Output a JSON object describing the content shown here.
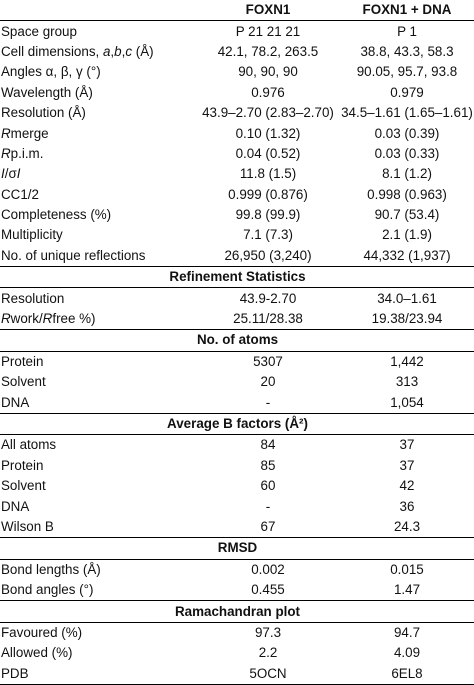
{
  "table": {
    "columns": [
      "",
      "FOXN1",
      "FOXN1 + DNA"
    ],
    "rows": [
      {
        "type": "row",
        "label": "Space group",
        "a": "P 21 21 21",
        "b": "P 1"
      },
      {
        "type": "row",
        "label": "Cell dimensions, a,b,c (Å)",
        "a": "42.1, 78.2, 263.5",
        "b": "38.8, 43.3, 58.3"
      },
      {
        "type": "row",
        "label": "Angles α, β, γ (°)",
        "a": "90, 90, 90",
        "b": "90.05, 95.7, 93.8"
      },
      {
        "type": "row",
        "label": "Wavelength (Å)",
        "a": "0.976",
        "b": "0.979"
      },
      {
        "type": "row",
        "label": "Resolution (Å)",
        "a": "43.9–2.70 (2.83–2.70)",
        "b": "34.5–1.61 (1.65–1.61)"
      },
      {
        "type": "row",
        "label": "Rmerge",
        "a": "0.10 (1.32)",
        "b": "0.03 (0.39)"
      },
      {
        "type": "row",
        "label": "Rp.i.m.",
        "a": "0.04 (0.52)",
        "b": "0.03 (0.33)"
      },
      {
        "type": "row",
        "label": "I/σI",
        "a": "11.8 (1.5)",
        "b": "8.1 (1.2)"
      },
      {
        "type": "row",
        "label": "CC1/2",
        "a": "0.999 (0.876)",
        "b": "0.998 (0.963)"
      },
      {
        "type": "row",
        "label": "Completeness (%)",
        "a": "99.8 (99.9)",
        "b": "90.7 (53.4)"
      },
      {
        "type": "row",
        "label": "Multiplicity",
        "a": "7.1 (7.3)",
        "b": "2.1 (1.9)"
      },
      {
        "type": "row",
        "label": "No. of unique reflections",
        "a": "26,950 (3,240)",
        "b": "44,332 (1,937)"
      },
      {
        "type": "section",
        "label": "Refinement Statistics"
      },
      {
        "type": "row",
        "label": "Resolution",
        "a": "43.9-2.70",
        "b": "34.0–1.61"
      },
      {
        "type": "row",
        "label": "Rwork/Rfree %)",
        "a": "25.11/28.38",
        "b": "19.38/23.94"
      },
      {
        "type": "section",
        "label": "No. of atoms"
      },
      {
        "type": "row",
        "label": "Protein",
        "a": "5307",
        "b": "1,442"
      },
      {
        "type": "row",
        "label": "Solvent",
        "a": "20",
        "b": "313"
      },
      {
        "type": "row",
        "label": "DNA",
        "a": "-",
        "b": "1,054"
      },
      {
        "type": "section",
        "label": "Average B factors (Å²)"
      },
      {
        "type": "row",
        "label": "All atoms",
        "a": "84",
        "b": "37"
      },
      {
        "type": "row",
        "label": "Protein",
        "a": "85",
        "b": "37"
      },
      {
        "type": "row",
        "label": "Solvent",
        "a": "60",
        "b": "42"
      },
      {
        "type": "row",
        "label": "DNA",
        "a": "-",
        "b": "36"
      },
      {
        "type": "row",
        "label": "Wilson B",
        "a": "67",
        "b": "24.3"
      },
      {
        "type": "section",
        "label": "RMSD"
      },
      {
        "type": "row",
        "label": "Bond lengths (Å)",
        "a": "0.002",
        "b": "0.015"
      },
      {
        "type": "row",
        "label": "Bond angles (°)",
        "a": "0.455",
        "b": "1.47"
      },
      {
        "type": "section",
        "label": "Ramachandran plot"
      },
      {
        "type": "row",
        "label": "Favoured (%)",
        "a": "97.3",
        "b": "94.7"
      },
      {
        "type": "row",
        "label": "Allowed (%)",
        "a": "2.2",
        "b": "4.09"
      },
      {
        "type": "row",
        "label": "PDB",
        "a": "5OCN",
        "b": "6EL8"
      }
    ]
  }
}
